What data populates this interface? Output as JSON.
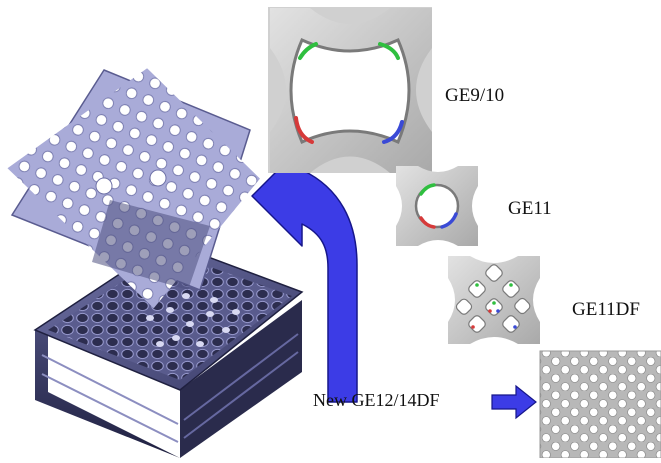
{
  "labels": {
    "ge9_10": "GE9/10",
    "ge11": "GE11",
    "ge11df": "GE11DF",
    "new_design": "New GE12/14DF"
  },
  "colors": {
    "arrow_blue": "#3c3ce6",
    "grid_lavender": "#a9abd8",
    "spacer_dark": "#3a3c66",
    "cell_gray": "#c9c9c9"
  }
}
